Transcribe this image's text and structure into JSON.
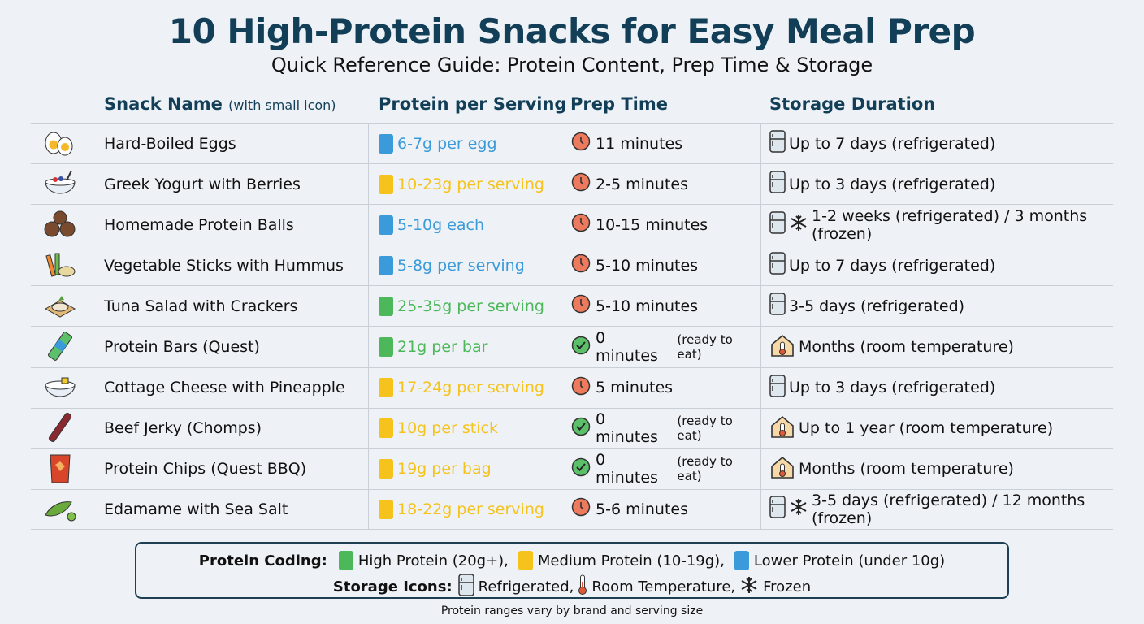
{
  "title": "10 High-Protein Snacks for Easy Meal Prep",
  "subtitle": "Quick Reference Guide: Protein Content, Prep Time & Storage",
  "headers": {
    "name": "Snack Name",
    "name_note": "(with small icon)",
    "protein": "Protein per Serving",
    "prep": "Prep Time",
    "storage": "Storage Duration"
  },
  "colors": {
    "high": "#4cb85a",
    "medium": "#f5c31c",
    "lower": "#3b9ad9",
    "title": "#123f57"
  },
  "rows": [
    {
      "icon": "egg-icon",
      "name": "Hard-Boiled Eggs",
      "protein": "6-7g per egg",
      "level": "lower",
      "prep": "11 minutes",
      "prep_note": "",
      "prep_icon": "clock",
      "storage": "Up to 7 days (refrigerated)",
      "storage_icon": "fridge"
    },
    {
      "icon": "yogurt-bowl-icon",
      "name": "Greek Yogurt with Berries",
      "protein": "10-23g per serving",
      "level": "medium",
      "prep": "2-5 minutes",
      "prep_note": "",
      "prep_icon": "clock",
      "storage": "Up to 3 days (refrigerated)",
      "storage_icon": "fridge"
    },
    {
      "icon": "protein-balls-icon",
      "name": "Homemade Protein Balls",
      "protein": "5-10g each",
      "level": "lower",
      "prep": "10-15 minutes",
      "prep_note": "",
      "prep_icon": "clock",
      "storage": "1-2 weeks (refrigerated) / 3 months (frozen)",
      "storage_icon": "fridge-frozen"
    },
    {
      "icon": "vegetable-sticks-icon",
      "name": "Vegetable Sticks with Hummus",
      "protein": "5-8g per serving",
      "level": "lower",
      "prep": "5-10 minutes",
      "prep_note": "",
      "prep_icon": "clock",
      "storage": "Up to 7 days (refrigerated)",
      "storage_icon": "fridge"
    },
    {
      "icon": "tuna-crackers-icon",
      "name": "Tuna Salad with Crackers",
      "protein": "25-35g per serving",
      "level": "high",
      "prep": "5-10 minutes",
      "prep_note": "",
      "prep_icon": "clock",
      "storage": "3-5 days (refrigerated)",
      "storage_icon": "fridge"
    },
    {
      "icon": "protein-bar-icon",
      "name": "Protein Bars (Quest)",
      "protein": "21g per bar",
      "level": "high",
      "prep": "0 minutes",
      "prep_note": "(ready to eat)",
      "prep_icon": "check",
      "storage": "Months (room temperature)",
      "storage_icon": "room"
    },
    {
      "icon": "cottage-cheese-icon",
      "name": "Cottage Cheese with Pineapple",
      "protein": "17-24g per serving",
      "level": "medium",
      "prep": "5 minutes",
      "prep_note": "",
      "prep_icon": "clock",
      "storage": "Up to 3 days (refrigerated)",
      "storage_icon": "fridge"
    },
    {
      "icon": "beef-jerky-icon",
      "name": "Beef Jerky (Chomps)",
      "protein": "10g per stick",
      "level": "medium",
      "prep": "0 minutes",
      "prep_note": "(ready to eat)",
      "prep_icon": "check",
      "storage": "Up to 1 year (room temperature)",
      "storage_icon": "room"
    },
    {
      "icon": "chips-bag-icon",
      "name": "Protein Chips (Quest BBQ)",
      "protein": "19g per bag",
      "level": "medium",
      "prep": "0 minutes",
      "prep_note": "(ready to eat)",
      "prep_icon": "check",
      "storage": "Months (room temperature)",
      "storage_icon": "room"
    },
    {
      "icon": "edamame-icon",
      "name": "Edamame with Sea Salt",
      "protein": "18-22g per serving",
      "level": "medium",
      "prep": "5-6 minutes",
      "prep_note": "",
      "prep_icon": "clock",
      "storage": "3-5 days (refrigerated) / 12 months (frozen)",
      "storage_icon": "fridge-frozen"
    }
  ],
  "legend": {
    "protein_label": "Protein Coding:",
    "high": "High Protein (20g+),",
    "medium": "Medium Protein (10-19g),",
    "lower": "Lower Protein (under 10g)",
    "storage_label": "Storage Icons:",
    "refrigerated": "Refrigerated,",
    "room": "Room Temperature,",
    "frozen": "Frozen"
  },
  "footnote": "Protein ranges vary by brand and serving size"
}
